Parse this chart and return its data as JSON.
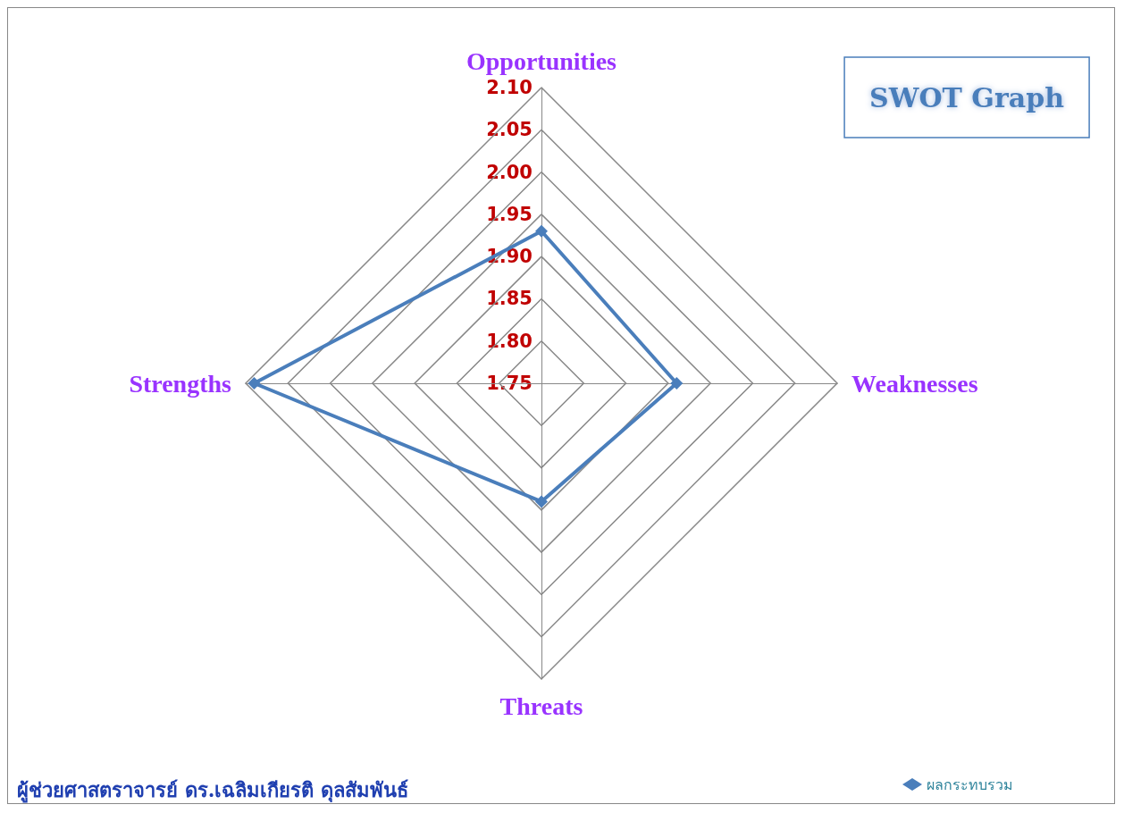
{
  "chart_data": {
    "type": "radar",
    "title": "SWOT Graph",
    "categories": [
      "Opportunities",
      "Weaknesses",
      "Threats",
      "Strengths"
    ],
    "series": [
      {
        "name": "ผลกระทบรวม",
        "color": "#4a7ebb",
        "values": [
          1.93,
          1.91,
          1.89,
          2.09
        ]
      }
    ],
    "ylim": [
      1.75,
      2.1
    ],
    "yticks": [
      {
        "value": 1.75,
        "label": "1.75"
      },
      {
        "value": 1.8,
        "label": "1.80"
      },
      {
        "value": 1.85,
        "label": "1.85"
      },
      {
        "value": 1.9,
        "label": "1.90"
      },
      {
        "value": 1.95,
        "label": "1.95"
      },
      {
        "value": 2.0,
        "label": "2.00"
      },
      {
        "value": 2.05,
        "label": "2.05"
      },
      {
        "value": 2.1,
        "label": "2.10"
      }
    ],
    "grid": true,
    "legend": "bottom right",
    "marker": "diamond",
    "line_style": "solid",
    "annotations": [
      "ผู้ช่วยศาสตราจารย์ ดร.เฉลิมเกียรติ ดุลสัมพันธ์"
    ]
  }
}
